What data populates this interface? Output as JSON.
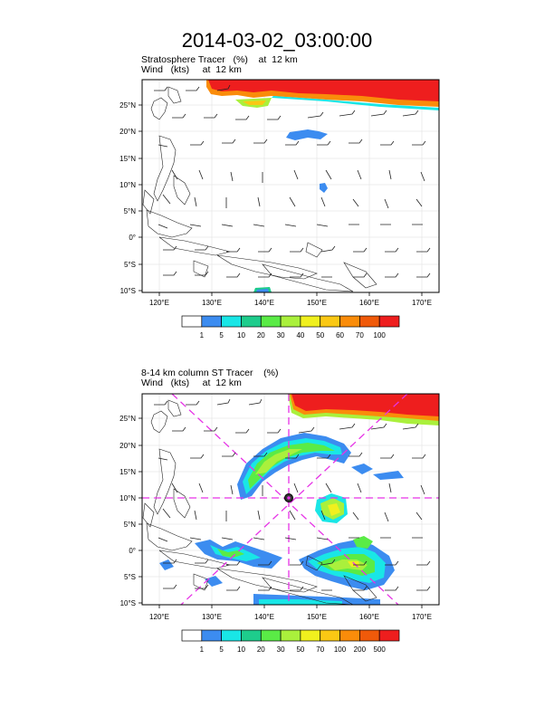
{
  "title": "2014-03-02_03:00:00",
  "panels": [
    {
      "tracer_title": "Stratosphere Tracer   (%)    at  12 km",
      "wind_title": "Wind   (kts)     at  12 km",
      "colorbar": {
        "labels": [
          "1",
          "5",
          "10",
          "20",
          "30",
          "40",
          "50",
          "60",
          "70",
          "100"
        ],
        "colors": [
          "#ffffff",
          "#3c8cf0",
          "#19e6e6",
          "#1ecc8c",
          "#5aeb46",
          "#aaf03c",
          "#f0f01e",
          "#fac814",
          "#fa8c0a",
          "#f05a0a",
          "#ee1e1e"
        ]
      }
    },
    {
      "tracer_title": "8-14 km column ST Tracer    (%)",
      "wind_title": "Wind   (kts)     at  12 km",
      "colorbar": {
        "labels": [
          "1",
          "5",
          "10",
          "20",
          "30",
          "50",
          "70",
          "100",
          "200",
          "500"
        ],
        "colors": [
          "#ffffff",
          "#3c8cf0",
          "#19e6e6",
          "#1ecc8c",
          "#5aeb46",
          "#aaf03c",
          "#f0f01e",
          "#fac814",
          "#fa8c0a",
          "#f05a0a",
          "#ee1e1e"
        ]
      }
    }
  ],
  "axes": {
    "lon_labels": [
      "120°E",
      "130°E",
      "140°E",
      "150°E",
      "160°E",
      "170°E"
    ],
    "lat_labels": [
      "25°N",
      "20°N",
      "15°N",
      "10°N",
      "5°N",
      "0°",
      "5°S",
      "10°S"
    ],
    "lon_range": [
      116,
      173
    ],
    "lat_range": [
      -10.3,
      28.5
    ]
  }
}
